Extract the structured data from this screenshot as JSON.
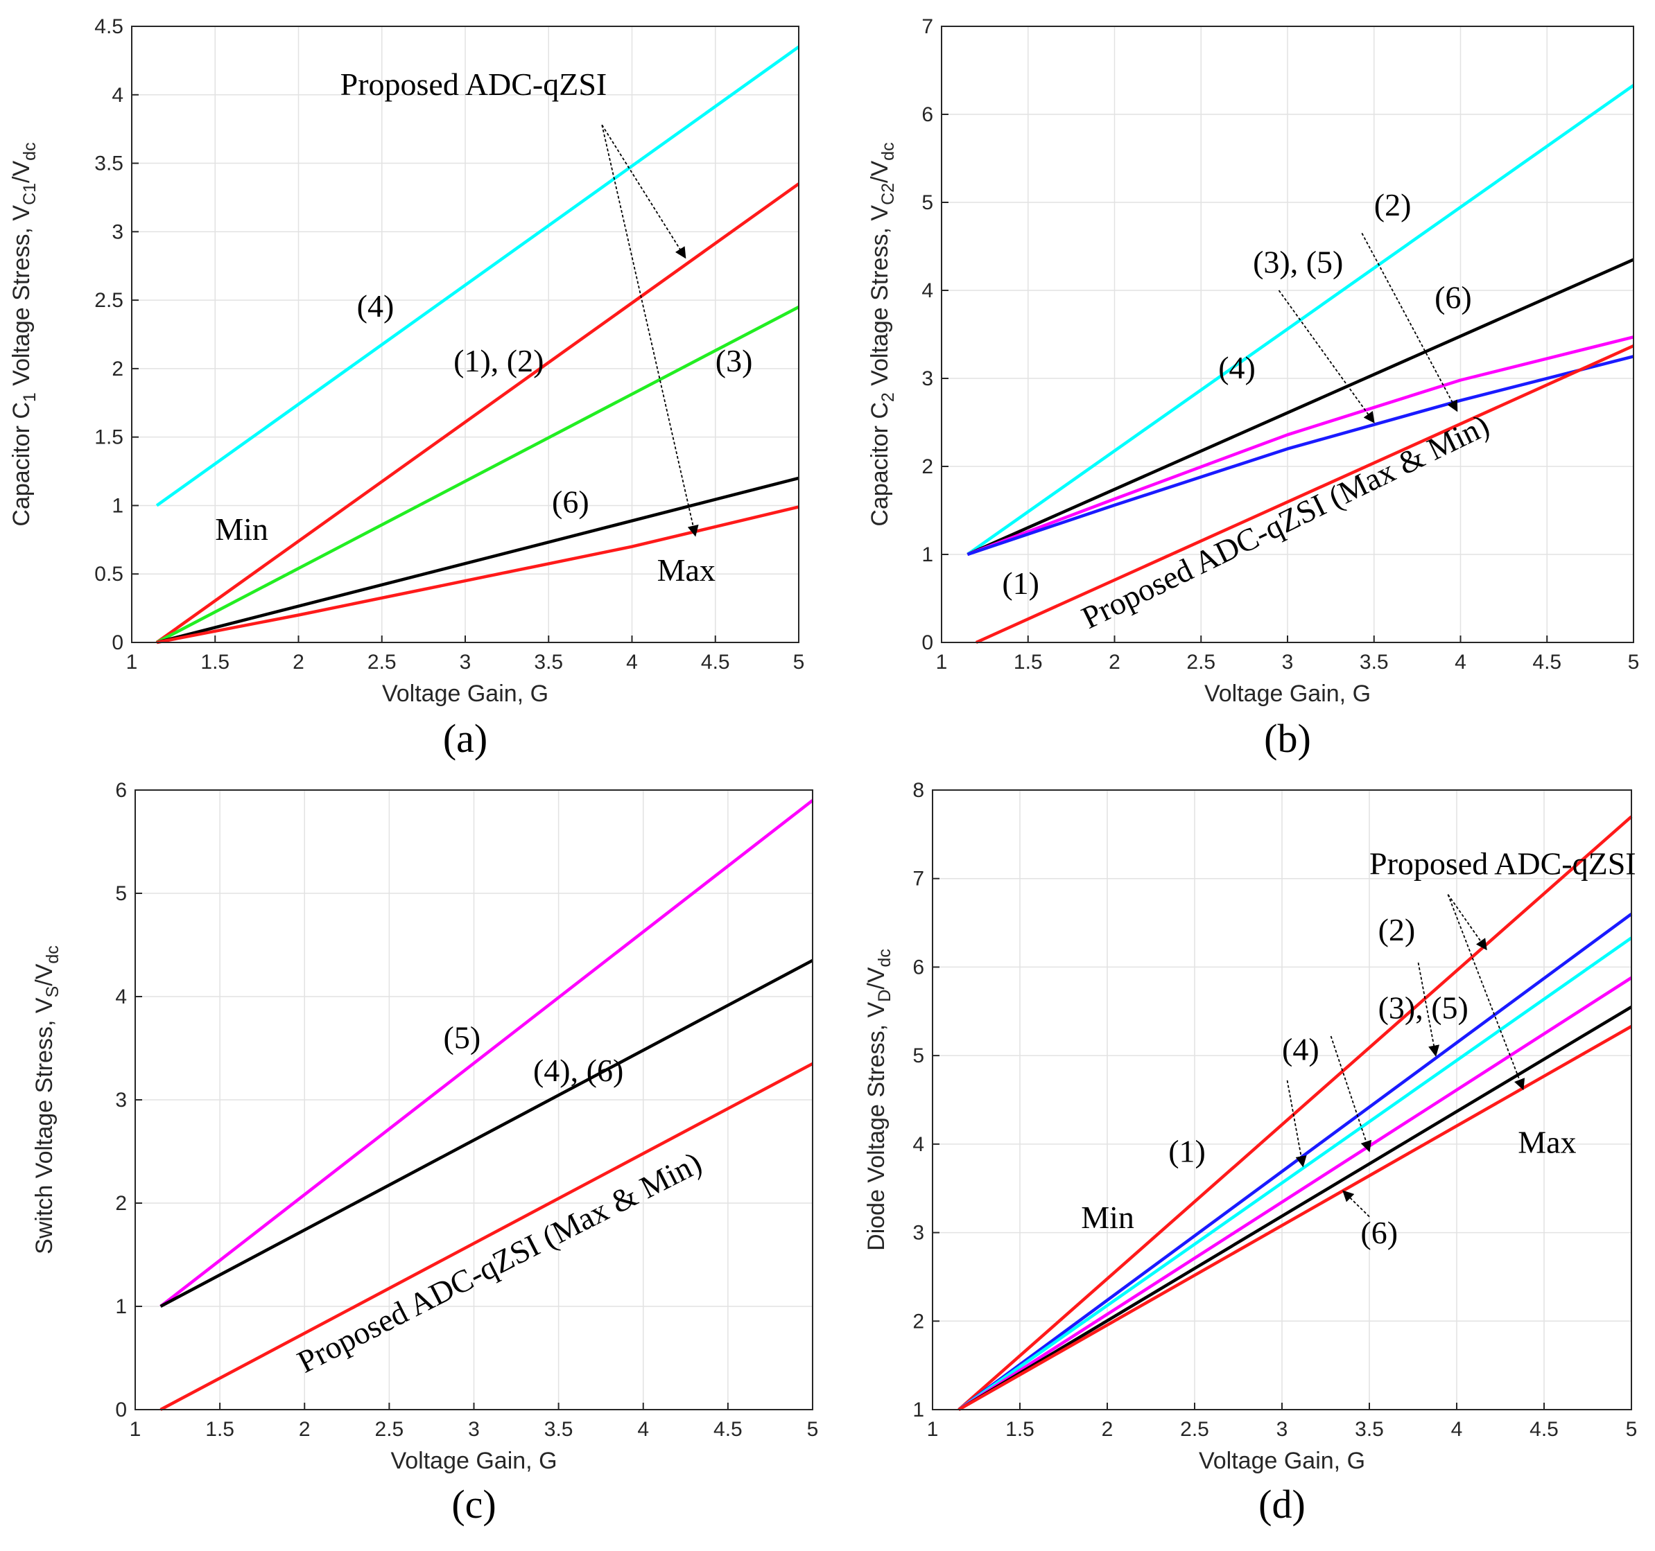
{
  "colors": {
    "cyan": "#00ffff",
    "red": "#ff1a1a",
    "green": "#22ee22",
    "black": "#000000",
    "magenta": "#ff00ff",
    "blue": "#1a1aff",
    "grid": "#e2e2e2",
    "axis": "#262626"
  },
  "chart_data": [
    {
      "id": "a",
      "type": "line",
      "caption": "(a)",
      "xlabel": "Voltage Gain, G",
      "ylabel": {
        "main": "Capacitor C",
        "s1": "1",
        "mid": " Voltage Stress, V",
        "s2": "C1",
        "slash": "/V",
        "s3": "dc"
      },
      "xlim": [
        1,
        5
      ],
      "ylim": [
        0,
        4.5
      ],
      "xticks": [
        1,
        1.5,
        2,
        2.5,
        3,
        3.5,
        4,
        4.5,
        5
      ],
      "xtick_labels": [
        "1",
        "1.5",
        "2",
        "2.5",
        "3",
        "3.5",
        "4",
        "4.5",
        "5"
      ],
      "yticks": [
        0,
        0.5,
        1,
        1.5,
        2,
        2.5,
        3,
        3.5,
        4,
        4.5
      ],
      "ytick_labels": [
        "0",
        "0.5",
        "1",
        "1.5",
        "2",
        "2.5",
        "3",
        "3.5",
        "4",
        "4.5"
      ],
      "series": [
        {
          "name": "(4)",
          "color": "cyan",
          "x": [
            1.15,
            5
          ],
          "y": [
            1.0,
            4.35
          ]
        },
        {
          "name": "(1), (2) / Proposed ADC-qZSI Min",
          "color": "red",
          "x": [
            1.15,
            5
          ],
          "y": [
            0,
            3.35
          ]
        },
        {
          "name": "(3)",
          "color": "green",
          "x": [
            1.15,
            5
          ],
          "y": [
            0,
            2.45
          ]
        },
        {
          "name": "(6)",
          "color": "black",
          "x": [
            1.15,
            5
          ],
          "y": [
            0,
            1.2
          ]
        },
        {
          "name": "Proposed ADC-qZSI Max",
          "color": "red",
          "x": [
            1.15,
            2,
            3,
            4,
            5
          ],
          "y": [
            0,
            0.2,
            0.45,
            0.7,
            0.99
          ]
        }
      ],
      "annotations": [
        {
          "text": "Proposed ADC-qZSI",
          "x": 2.25,
          "y": 4.0
        },
        {
          "text": "(4)",
          "x": 2.35,
          "y": 2.38
        },
        {
          "text": "(1), (2)",
          "x": 2.93,
          "y": 1.98
        },
        {
          "text": "(3)",
          "x": 4.5,
          "y": 1.98
        },
        {
          "text": "Min",
          "x": 1.5,
          "y": 0.75
        },
        {
          "text": "(6)",
          "x": 3.52,
          "y": 0.95
        },
        {
          "text": "Max",
          "x": 4.15,
          "y": 0.45
        }
      ],
      "arrows": [
        {
          "from": [
            3.82,
            3.78
          ],
          "to": [
            4.32,
            2.81
          ]
        },
        {
          "from": [
            3.82,
            3.78
          ],
          "to": [
            4.38,
            0.78
          ]
        }
      ]
    },
    {
      "id": "b",
      "type": "line",
      "caption": "(b)",
      "xlabel": "Voltage Gain, G",
      "ylabel": {
        "main": "Capacitor C",
        "s1": "2",
        "mid": " Voltage Stress, V",
        "s2": "C2",
        "slash": "/V",
        "s3": "dc"
      },
      "xlim": [
        1,
        5
      ],
      "ylim": [
        0,
        7
      ],
      "xticks": [
        1,
        1.5,
        2,
        2.5,
        3,
        3.5,
        4,
        4.5,
        5
      ],
      "xtick_labels": [
        "1",
        "1.5",
        "2",
        "2.5",
        "3",
        "3.5",
        "4",
        "4.5",
        "5"
      ],
      "yticks": [
        0,
        1,
        2,
        3,
        4,
        5,
        6,
        7
      ],
      "ytick_labels": [
        "0",
        "1",
        "2",
        "3",
        "4",
        "5",
        "6",
        "7"
      ],
      "series": [
        {
          "name": "(4)",
          "color": "cyan",
          "x": [
            1.15,
            5
          ],
          "y": [
            1.0,
            6.33
          ]
        },
        {
          "name": "(6)",
          "color": "black",
          "x": [
            1.15,
            5
          ],
          "y": [
            1.0,
            4.35
          ]
        },
        {
          "name": "(3), (5)",
          "color": "magenta",
          "x": [
            1.15,
            2,
            3,
            4,
            5
          ],
          "y": [
            1.0,
            1.63,
            2.36,
            2.98,
            3.47
          ]
        },
        {
          "name": "(2)",
          "color": "blue",
          "x": [
            1.15,
            2,
            3,
            4,
            5
          ],
          "y": [
            1.0,
            1.56,
            2.2,
            2.75,
            3.25
          ]
        },
        {
          "name": "(1) / Proposed ADC-qZSI (Max & Min)",
          "color": "red",
          "x": [
            1.2,
            5
          ],
          "y": [
            0,
            3.37
          ]
        }
      ],
      "annotations": [
        {
          "text": "(2)",
          "x": 3.5,
          "y": 4.85
        },
        {
          "text": "(3), (5)",
          "x": 2.8,
          "y": 4.2
        },
        {
          "text": "(6)",
          "x": 3.85,
          "y": 3.8
        },
        {
          "text": "(4)",
          "x": 2.6,
          "y": 3.0
        },
        {
          "text": "(1)",
          "x": 1.35,
          "y": 0.55
        },
        {
          "text": "Proposed ADC-qZSI  (Max & Min)",
          "x": 1.85,
          "y": 0.15,
          "rotate": -26
        }
      ],
      "arrows": [
        {
          "from": [
            3.43,
            4.65
          ],
          "to": [
            3.98,
            2.63
          ]
        },
        {
          "from": [
            2.95,
            4.0
          ],
          "to": [
            3.5,
            2.5
          ]
        }
      ]
    },
    {
      "id": "c",
      "type": "line",
      "caption": "(c)",
      "xlabel": "Voltage Gain, G",
      "ylabel": {
        "main": "Switch Voltage Stress, V",
        "s1": "",
        "mid": "",
        "s2": "S",
        "slash": "/V",
        "s3": "dc"
      },
      "xlim": [
        1,
        5
      ],
      "ylim": [
        0,
        6
      ],
      "xticks": [
        1,
        1.5,
        2,
        2.5,
        3,
        3.5,
        4,
        4.5,
        5
      ],
      "xtick_labels": [
        "1",
        "1.5",
        "2",
        "2.5",
        "3",
        "3.5",
        "4",
        "4.5",
        "5"
      ],
      "yticks": [
        0,
        1,
        2,
        3,
        4,
        5,
        6
      ],
      "ytick_labels": [
        "0",
        "1",
        "2",
        "3",
        "4",
        "5",
        "6"
      ],
      "series": [
        {
          "name": "(5)",
          "color": "magenta",
          "x": [
            1.15,
            5
          ],
          "y": [
            1.0,
            5.9
          ]
        },
        {
          "name": "(4), (6)",
          "color": "black",
          "x": [
            1.15,
            5
          ],
          "y": [
            1.0,
            4.35
          ]
        },
        {
          "name": "Proposed ADC-qZSI (Max & Min)",
          "color": "red",
          "x": [
            1.15,
            5
          ],
          "y": [
            0,
            3.35
          ]
        }
      ],
      "annotations": [
        {
          "text": "(5)",
          "x": 2.82,
          "y": 3.5
        },
        {
          "text": "(4), (6)",
          "x": 3.35,
          "y": 3.18
        },
        {
          "text": "Proposed ADC-qZSI  (Max & Min)",
          "x": 2.0,
          "y": 0.35,
          "rotate": -27
        }
      ],
      "arrows": []
    },
    {
      "id": "d",
      "type": "line",
      "caption": "(d)",
      "xlabel": "Voltage Gain, G",
      "ylabel": {
        "main": "Diode Voltage Stress, V",
        "s1": "",
        "mid": "",
        "s2": "D",
        "slash": "/V",
        "s3": "dc"
      },
      "xlim": [
        1,
        5
      ],
      "ylim": [
        1,
        8
      ],
      "xticks": [
        1,
        1.5,
        2,
        2.5,
        3,
        3.5,
        4,
        4.5,
        5
      ],
      "xtick_labels": [
        "1",
        "1.5",
        "2",
        "2.5",
        "3",
        "3.5",
        "4",
        "4.5",
        "5"
      ],
      "yticks": [
        1,
        2,
        3,
        4,
        5,
        6,
        7,
        8
      ],
      "ytick_labels": [
        "1",
        "2",
        "3",
        "4",
        "5",
        "6",
        "7",
        "8"
      ],
      "series": [
        {
          "name": "Proposed ADC-qZSI Min",
          "color": "red",
          "x": [
            1.15,
            5
          ],
          "y": [
            1.0,
            7.7
          ]
        },
        {
          "name": "(2)",
          "color": "blue",
          "x": [
            1.15,
            5
          ],
          "y": [
            1.0,
            6.6
          ]
        },
        {
          "name": "(3), (5)",
          "color": "cyan",
          "x": [
            1.15,
            5
          ],
          "y": [
            1.0,
            6.33
          ]
        },
        {
          "name": "(4)",
          "color": "magenta",
          "x": [
            1.15,
            5
          ],
          "y": [
            1.0,
            5.88
          ]
        },
        {
          "name": "(6)",
          "color": "black",
          "x": [
            1.15,
            5
          ],
          "y": [
            1.0,
            5.55
          ]
        },
        {
          "name": "Proposed ADC-qZSI Max",
          "color": "red",
          "x": [
            1.15,
            5
          ],
          "y": [
            1.0,
            5.33
          ]
        }
      ],
      "annotations": [
        {
          "text": "Proposed ADC-qZSI",
          "x": 3.5,
          "y": 7.05
        },
        {
          "text": "(2)",
          "x": 3.55,
          "y": 6.3
        },
        {
          "text": "(3), (5)",
          "x": 3.55,
          "y": 5.42
        },
        {
          "text": "(4)",
          "x": 3.0,
          "y": 4.95
        },
        {
          "text": "(1)",
          "x": 2.35,
          "y": 3.8
        },
        {
          "text": "Max",
          "x": 4.35,
          "y": 3.9
        },
        {
          "text": "Min",
          "x": 1.85,
          "y": 3.05
        },
        {
          "text": "(6)",
          "x": 3.45,
          "y": 2.88
        }
      ],
      "arrows": [
        {
          "from": [
            3.95,
            6.82
          ],
          "to": [
            4.17,
            6.2
          ]
        },
        {
          "from": [
            3.95,
            6.82
          ],
          "to": [
            4.38,
            4.62
          ]
        },
        {
          "from": [
            3.78,
            6.05
          ],
          "to": [
            3.88,
            5.0
          ]
        },
        {
          "from": [
            3.28,
            5.22
          ],
          "to": [
            3.5,
            3.92
          ]
        },
        {
          "from": [
            3.03,
            4.72
          ],
          "to": [
            3.12,
            3.75
          ]
        },
        {
          "from": [
            3.5,
            3.18
          ],
          "to": [
            3.35,
            3.47
          ]
        }
      ]
    }
  ]
}
